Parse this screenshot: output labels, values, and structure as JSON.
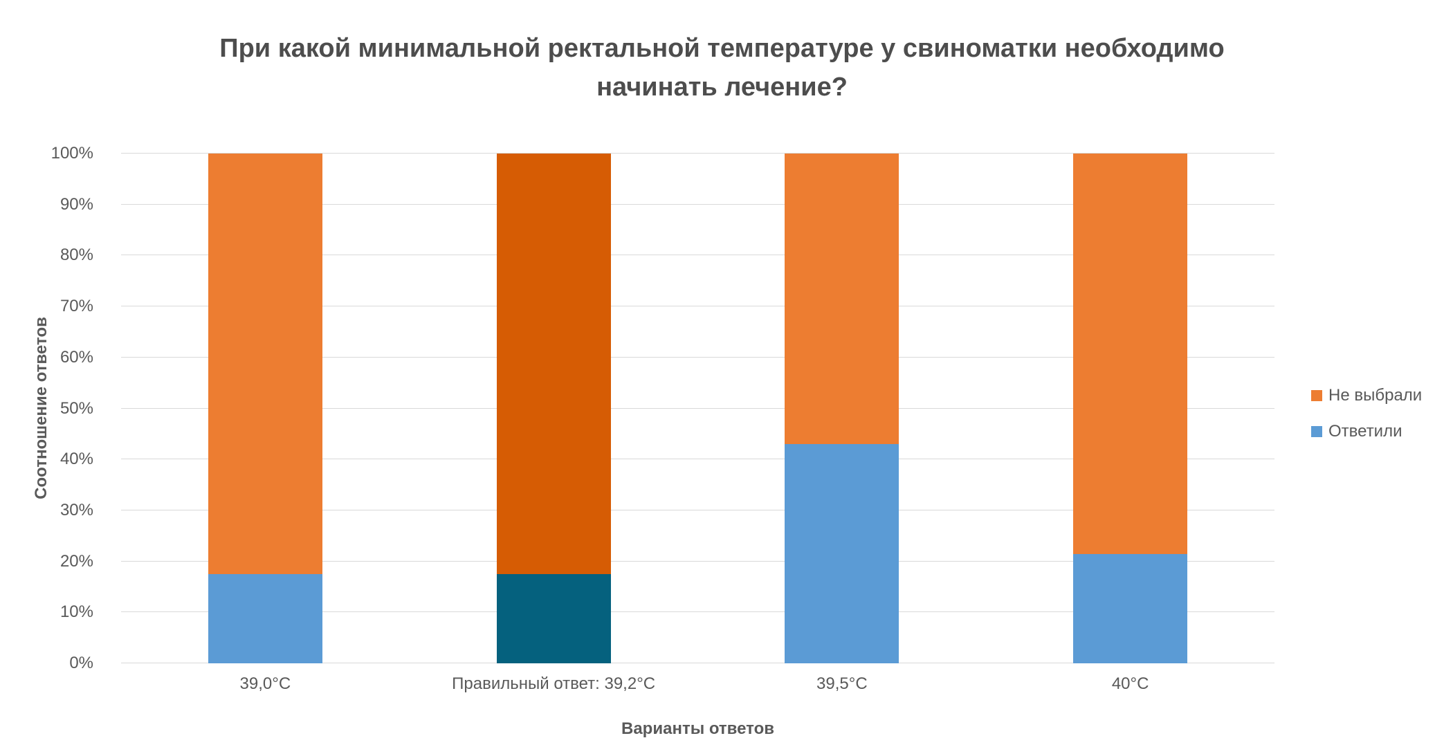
{
  "chart_data": {
    "type": "bar",
    "stacked": true,
    "percent": true,
    "title": "При какой минимальной ректальной температуре у свиноматки необходимо начинать лечение?",
    "xlabel": "Варианты ответов",
    "ylabel": "Соотношение ответов",
    "categories": [
      "39,0°C",
      "Правильный ответ: 39,2°C",
      "39,5°C",
      "40°C"
    ],
    "series": [
      {
        "name": "Ответили",
        "values": [
          17.5,
          17.5,
          43,
          21.5
        ],
        "color": "#5B9BD5",
        "highlight_color": "#05617E"
      },
      {
        "name": "Не выбрали",
        "values": [
          82.5,
          82.5,
          57,
          78.5
        ],
        "color": "#ED7D31",
        "highlight_color": "#D65C04"
      }
    ],
    "highlight_index": 1,
    "y_ticks": [
      "0%",
      "10%",
      "20%",
      "30%",
      "40%",
      "50%",
      "60%",
      "70%",
      "80%",
      "90%",
      "100%"
    ],
    "ylim": [
      0,
      100
    ],
    "grid": true,
    "legend_position": "right",
    "legend_items": [
      {
        "label": "Не выбрали",
        "color": "#ED7D31"
      },
      {
        "label": "Ответили",
        "color": "#5B9BD5"
      }
    ],
    "colors": {
      "gridline": "#d9d9d9",
      "text": "#595959",
      "title_text": "#4d4d4d",
      "background": "#ffffff"
    }
  }
}
